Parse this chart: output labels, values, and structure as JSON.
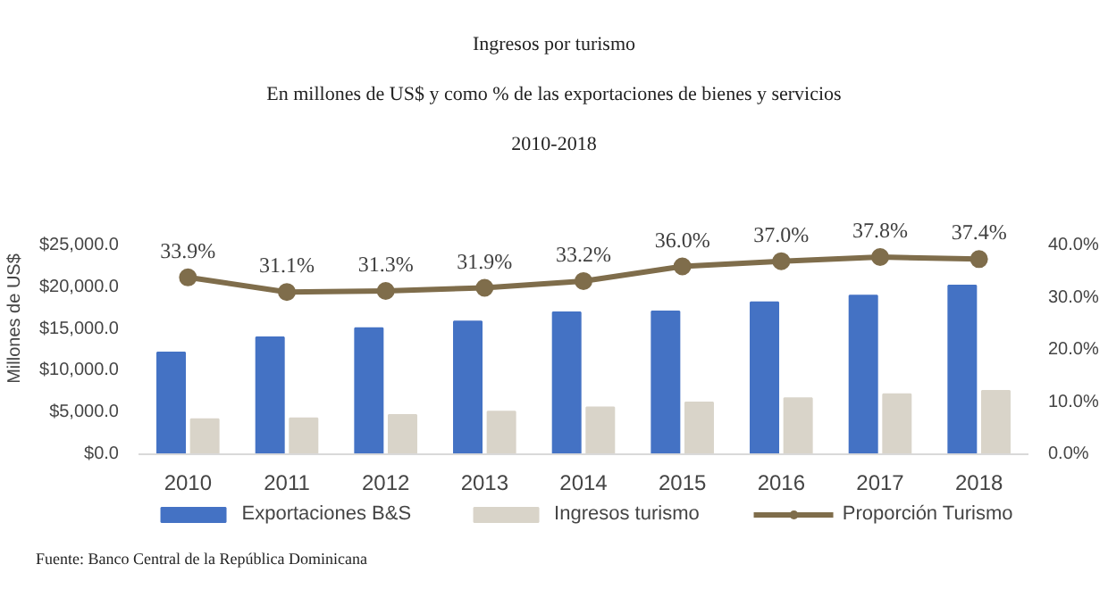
{
  "chart_data": {
    "type": "bar",
    "title": "Ingresos por turismo",
    "subtitle": "En millones de US$ y como % de las exportaciones de bienes y servicios\n\n2010-2018",
    "ylabel": "Millones de US$",
    "categories": [
      "2010",
      "2011",
      "2012",
      "2013",
      "2014",
      "2015",
      "2016",
      "2017",
      "2018"
    ],
    "series": [
      {
        "name": "Exportaciones B&S",
        "color": "#4472c4",
        "values": [
          12200,
          14000,
          15100,
          15900,
          17000,
          17100,
          18200,
          19000,
          20200
        ]
      },
      {
        "name": "Ingresos turismo",
        "color": "#d9d4c9",
        "values": [
          4200,
          4300,
          4700,
          5100,
          5600,
          6200,
          6700,
          7200,
          7600
        ]
      },
      {
        "name": "Proporción Turismo",
        "color": "#7f6d4b",
        "type": "line",
        "axis": "y2",
        "marker": "circle",
        "values": [
          33.9,
          31.1,
          31.3,
          31.9,
          33.2,
          36.0,
          37.0,
          37.8,
          37.4
        ],
        "value_labels": [
          "33.9%",
          "31.1%",
          "31.3%",
          "31.9%",
          "33.2%",
          "36.0%",
          "37.0%",
          "37.8%",
          "37.4%"
        ]
      }
    ],
    "ylim": [
      0,
      25000
    ],
    "yticks": [
      {
        "value": 0,
        "label": "$0.0"
      },
      {
        "value": 5000,
        "label": "$5,000.0"
      },
      {
        "value": 10000,
        "label": "$10,000.0"
      },
      {
        "value": 15000,
        "label": "$15,000.0"
      },
      {
        "value": 20000,
        "label": "$20,000.0"
      },
      {
        "value": 25000,
        "label": "$25,000.0"
      }
    ],
    "y2lim": [
      0,
      40
    ],
    "y2ticks": [
      {
        "value": 0,
        "label": "0.0%"
      },
      {
        "value": 10,
        "label": "10.0%"
      },
      {
        "value": 20,
        "label": "20.0%"
      },
      {
        "value": 30,
        "label": "30.0%"
      },
      {
        "value": 40,
        "label": "40.0%"
      }
    ],
    "grid": false,
    "legend": "bottom",
    "annotations": [
      "Fuente: Banco Central de la República Dominicana"
    ]
  }
}
